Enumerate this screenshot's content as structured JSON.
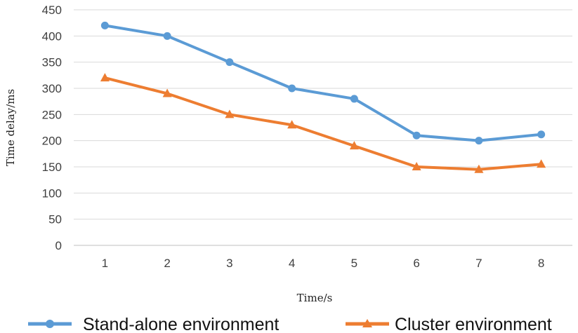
{
  "chart_data": {
    "type": "line",
    "title": "",
    "xlabel": "Time/s",
    "ylabel": "Time delay/ms",
    "x": [
      1,
      2,
      3,
      4,
      5,
      6,
      7,
      8
    ],
    "x_ticks": [
      "1",
      "2",
      "3",
      "4",
      "5",
      "6",
      "7",
      "8"
    ],
    "y_ticks": [
      "0",
      "50",
      "100",
      "150",
      "200",
      "250",
      "300",
      "350",
      "400",
      "450"
    ],
    "ylim": [
      0,
      450
    ],
    "grid": true,
    "legend_position": "bottom",
    "series": [
      {
        "name": "Stand-alone environment",
        "color": "#5b9bd5",
        "marker": "circle",
        "values": [
          420,
          400,
          350,
          300,
          280,
          210,
          200,
          212
        ]
      },
      {
        "name": "Cluster environment",
        "color": "#ed7d31",
        "marker": "triangle",
        "values": [
          320,
          290,
          250,
          230,
          190,
          150,
          145,
          155
        ]
      }
    ]
  }
}
